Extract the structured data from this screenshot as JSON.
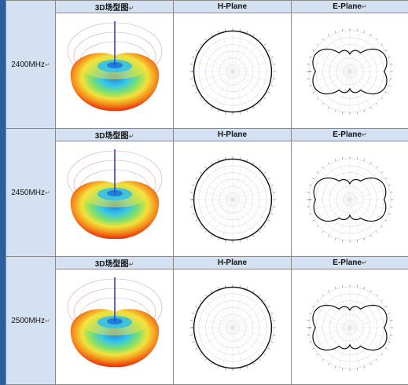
{
  "columns": {
    "col1": "3D场型图",
    "col2": "H-Plane",
    "col3": "E-Plane"
  },
  "para_mark": "↵",
  "rows": [
    {
      "freq": "2400MHz"
    },
    {
      "freq": "2450MHz"
    },
    {
      "freq": "2500MHz"
    }
  ],
  "colors": {
    "header_bg": "#d3e1f2",
    "border": "#8a8a8a",
    "gain_low": "#1f7fd6",
    "gain_high": "#e41a0c",
    "polar_trace": "#111111",
    "axis_line": "#3b3bd0"
  }
}
